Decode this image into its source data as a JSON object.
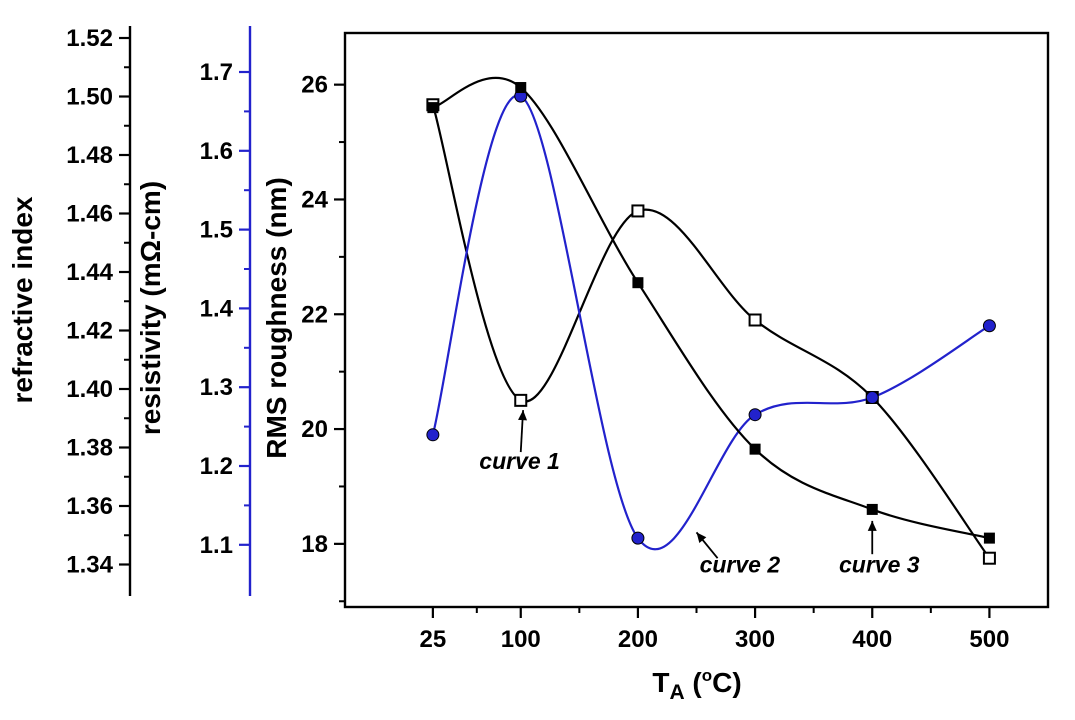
{
  "figure": {
    "background": "#ffffff"
  },
  "chart_data": {
    "type": "line",
    "title": "",
    "x": [
      25,
      100,
      200,
      300,
      400,
      500
    ],
    "xlim": [
      -50,
      550
    ],
    "ylim": [
      16.9,
      26.9
    ],
    "grid": false,
    "legend": "none",
    "x_axis": {
      "label": "T_A (°C)",
      "label_prefix": "T",
      "label_sub": "A",
      "label_mid": " (",
      "label_sup": "o",
      "label_suffix": "C)",
      "ticks": [
        "25",
        "100",
        "200",
        "300",
        "400",
        "500"
      ],
      "tick_values": [
        25,
        100,
        200,
        300,
        400,
        500
      ]
    },
    "y_axes": [
      {
        "title": "refractive index",
        "color": "#000000",
        "ticks": [
          "1.52",
          "1.50",
          "1.48",
          "1.46",
          "1.44",
          "1.42",
          "1.40",
          "1.38",
          "1.36",
          "1.34"
        ]
      },
      {
        "title": "resistivity (mΩ-cm)",
        "color": "#2222cc",
        "ticks": [
          "1.7",
          "1.6",
          "1.5",
          "1.4",
          "1.3",
          "1.2",
          "1.1"
        ]
      },
      {
        "title": "RMS roughness (nm)",
        "color": "#000000",
        "ticks": [
          "26",
          "24",
          "22",
          "20",
          "18"
        ],
        "tick_values": [
          26,
          24,
          22,
          20,
          18
        ],
        "minor_tick_values": [
          25,
          23,
          21,
          19,
          17
        ]
      }
    ],
    "y_readout_axis": "RMS roughness (nm)",
    "series": [
      {
        "name": "curve 1",
        "marker": "open-square",
        "color": "#000000",
        "values": [
          25.65,
          20.5,
          23.8,
          21.9,
          20.55,
          17.75
        ]
      },
      {
        "name": "curve 2",
        "marker": "filled-circle",
        "color": "#2222cc",
        "values": [
          19.9,
          25.8,
          18.1,
          20.25,
          20.55,
          21.8
        ]
      },
      {
        "name": "curve 3",
        "marker": "filled-square",
        "color": "#000000",
        "values": [
          25.6,
          25.95,
          22.55,
          19.65,
          18.6,
          18.1
        ]
      }
    ],
    "x_minor_tick_values": [
      62.5,
      150,
      250,
      350,
      450
    ],
    "annotations": [
      {
        "label": "curve 1",
        "text_at": [
          99,
          19.3
        ],
        "arrow_from": [
          100,
          19.6
        ],
        "arrow_to": [
          102,
          20.33
        ]
      },
      {
        "label": "curve 2",
        "text_at": [
          287,
          17.5
        ],
        "arrow_from": [
          268,
          17.75
        ],
        "arrow_to": [
          250,
          18.2
        ]
      },
      {
        "label": "curve 3",
        "text_at": [
          406,
          17.5
        ],
        "arrow_from": [
          400,
          17.82
        ],
        "arrow_to": [
          400,
          18.4
        ]
      }
    ]
  }
}
